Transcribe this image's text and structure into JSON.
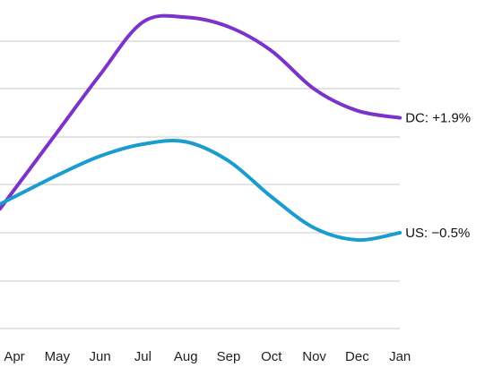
{
  "chart_data": {
    "type": "line",
    "categories": [
      "Apr",
      "May",
      "Jun",
      "Jul",
      "Aug",
      "Sep",
      "Oct",
      "Nov",
      "Dec",
      "Jan"
    ],
    "ylim": [
      -2.5,
      4.0
    ],
    "grid": true,
    "series": [
      {
        "name": "DC",
        "color": "#7B33C9",
        "end_label": "DC: +1.9%",
        "values": [
          0.4,
          1.6,
          2.8,
          3.9,
          4.0,
          3.8,
          3.3,
          2.5,
          2.05,
          1.9
        ]
      },
      {
        "name": "US",
        "color": "#1B9CCF",
        "end_label": "US: −0.5%",
        "values": [
          0.25,
          0.7,
          1.1,
          1.35,
          1.4,
          1.0,
          0.25,
          -0.4,
          -0.65,
          -0.5
        ]
      }
    ]
  }
}
